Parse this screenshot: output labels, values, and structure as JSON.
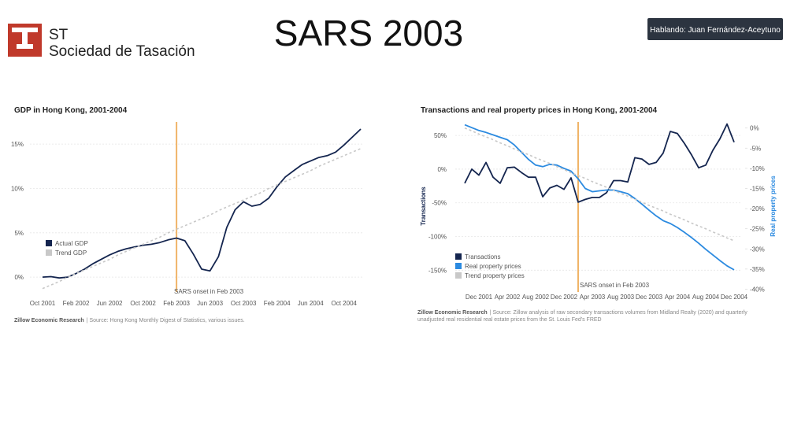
{
  "slide": {
    "title": "SARS 2003",
    "logo_mark": "ST",
    "logo_name": "Sociedad de Tasación",
    "speaker": "Hablando: Juan Fernández-Aceytuno"
  },
  "chart_data": [
    {
      "type": "line",
      "title": "GDP in Hong Kong, 2001-2004",
      "categories": [
        "Oct 2001",
        null,
        null,
        null,
        "Feb 2002",
        null,
        null,
        null,
        "Jun 2002",
        null,
        null,
        null,
        "Oct 2002",
        null,
        null,
        null,
        "Feb 2003",
        null,
        null,
        null,
        "Jun 2003",
        null,
        null,
        null,
        "Oct 2003",
        null,
        null,
        null,
        "Feb 2004",
        null,
        null,
        null,
        "Jun 2004",
        null,
        null,
        null,
        "Oct 2004",
        null,
        null
      ],
      "series": [
        {
          "name": "Actual GDP",
          "color": "#14254f",
          "style": "solid",
          "axis": "y",
          "values": [
            0.0,
            0.05,
            -0.1,
            0.0,
            0.4,
            0.9,
            1.5,
            2.0,
            2.5,
            2.9,
            3.2,
            3.4,
            3.6,
            3.7,
            3.9,
            4.2,
            4.4,
            4.1,
            2.6,
            0.9,
            0.7,
            2.3,
            5.6,
            7.6,
            8.5,
            8.0,
            8.2,
            8.9,
            10.2,
            11.3,
            12.0,
            12.7,
            13.1,
            13.5,
            13.7,
            14.1,
            14.9,
            15.8,
            16.7
          ]
        },
        {
          "name": "Trend GDP",
          "color": "#c8c8c8",
          "style": "dotted",
          "axis": "y",
          "values": [
            -1.3,
            -0.9,
            -0.5,
            0.0,
            0.4,
            0.8,
            1.2,
            1.6,
            2.0,
            2.5,
            2.9,
            3.3,
            3.7,
            4.1,
            4.5,
            5.0,
            5.4,
            5.8,
            6.2,
            6.6,
            7.0,
            7.5,
            7.9,
            8.3,
            8.7,
            9.1,
            9.5,
            10.0,
            10.4,
            10.8,
            11.2,
            11.6,
            12.0,
            12.5,
            12.9,
            13.3,
            13.7,
            14.1,
            14.5
          ]
        }
      ],
      "ylim": [
        -1.5,
        17.5
      ],
      "yticks": [
        {
          "value": 0,
          "label": "0%"
        },
        {
          "value": 5,
          "label": "5%"
        },
        {
          "value": 10,
          "label": "10%"
        },
        {
          "value": 15,
          "label": "15%"
        }
      ],
      "grid": true,
      "annotation": {
        "label": "SARS onset in Feb 2003",
        "category_index": 16,
        "color": "#f0b468"
      },
      "source_org": "Zillow Economic Research",
      "source": [
        "| Source: Hong Kong Monthly Digest of Statistics, various issues."
      ]
    },
    {
      "type": "line",
      "title": "Transactions and real property prices in Hong Kong, 2001-2004",
      "categories": [
        null,
        null,
        "Dec 2001",
        null,
        null,
        null,
        "Apr 2002",
        null,
        null,
        null,
        "Aug 2002",
        null,
        null,
        null,
        "Dec 2002",
        null,
        null,
        null,
        "Apr 2003",
        null,
        null,
        null,
        "Aug 2003",
        null,
        null,
        null,
        "Dec 2003",
        null,
        null,
        null,
        "Apr 2004",
        null,
        null,
        null,
        "Aug 2004",
        null,
        null,
        null,
        "Dec 2004"
      ],
      "ylabel": "Transactions",
      "y2label": "Real property prices",
      "y2label_color": "#2b8ae0",
      "series": [
        {
          "name": "Transactions",
          "color": "#14254f",
          "style": "solid",
          "axis": "y",
          "values": [
            -21,
            0,
            -9,
            10,
            -12,
            -21,
            2,
            3,
            -5,
            -12,
            -12,
            -41,
            -28,
            -24,
            -30,
            -13,
            -49,
            -45,
            -42,
            -42,
            -35,
            -17,
            -17,
            -19,
            17,
            15,
            7,
            10,
            24,
            56,
            53,
            38,
            21,
            2,
            6,
            28,
            45,
            67,
            40
          ]
        },
        {
          "name": "Real property prices",
          "color": "#2b8ae0",
          "style": "solid",
          "axis": "y2",
          "values": [
            0.8,
            0.1,
            -0.6,
            -1.1,
            -1.7,
            -2.3,
            -2.9,
            -4.2,
            -6.0,
            -7.8,
            -9.2,
            -9.6,
            -9.0,
            -9.2,
            -10.0,
            -10.7,
            -12.6,
            -15.0,
            -15.8,
            -15.6,
            -15.4,
            -15.4,
            -15.8,
            -16.3,
            -17.5,
            -18.9,
            -20.4,
            -21.8,
            -23.0,
            -23.7,
            -24.7,
            -25.9,
            -27.2,
            -28.6,
            -30.1,
            -31.5,
            -32.9,
            -34.2,
            -35.2
          ]
        },
        {
          "name": "Trend property prices",
          "color": "#c8c8c8",
          "style": "dotted",
          "axis": "y2",
          "values": [
            0.0,
            -0.7,
            -1.5,
            -2.2,
            -2.9,
            -3.7,
            -4.4,
            -5.2,
            -5.9,
            -6.6,
            -7.4,
            -8.1,
            -8.8,
            -9.6,
            -10.3,
            -11.1,
            -11.8,
            -12.5,
            -13.3,
            -14.0,
            -14.7,
            -15.5,
            -16.2,
            -16.9,
            -17.7,
            -18.4,
            -19.2,
            -19.9,
            -20.6,
            -21.4,
            -22.1,
            -22.8,
            -23.6,
            -24.3,
            -25.0,
            -25.8,
            -26.5,
            -27.3,
            -28.0
          ]
        }
      ],
      "ylim": [
        -180,
        70
      ],
      "yticks": [
        {
          "value": 50,
          "label": "50%"
        },
        {
          "value": 0,
          "label": "0%"
        },
        {
          "value": -50,
          "label": "-50%"
        },
        {
          "value": -100,
          "label": "-100%"
        },
        {
          "value": -150,
          "label": "-150%"
        }
      ],
      "y2lim": [
        -40.3,
        1.5
      ],
      "y2ticks": [
        {
          "value": 0,
          "label": "0%"
        },
        {
          "value": -5,
          "label": "-5%"
        },
        {
          "value": -10,
          "label": "-10%"
        },
        {
          "value": -15,
          "label": "-15%"
        },
        {
          "value": -20,
          "label": "-20%"
        },
        {
          "value": -25,
          "label": "-25%"
        },
        {
          "value": -30,
          "label": "-30%"
        },
        {
          "value": -35,
          "label": "-35%"
        },
        {
          "value": -40,
          "label": "-40%"
        }
      ],
      "grid": true,
      "annotation": {
        "label": "SARS onset in Feb 2003",
        "category_index": 16,
        "color": "#f0b468"
      },
      "source_org": "Zillow Economic Research",
      "source": [
        "| Source: Zillow analysis of raw secondary transactions volumes from Midland Realty (2020) and quarterly",
        "unadjusted real residential real estate prices from the St. Louis Fed's FRED"
      ]
    }
  ]
}
